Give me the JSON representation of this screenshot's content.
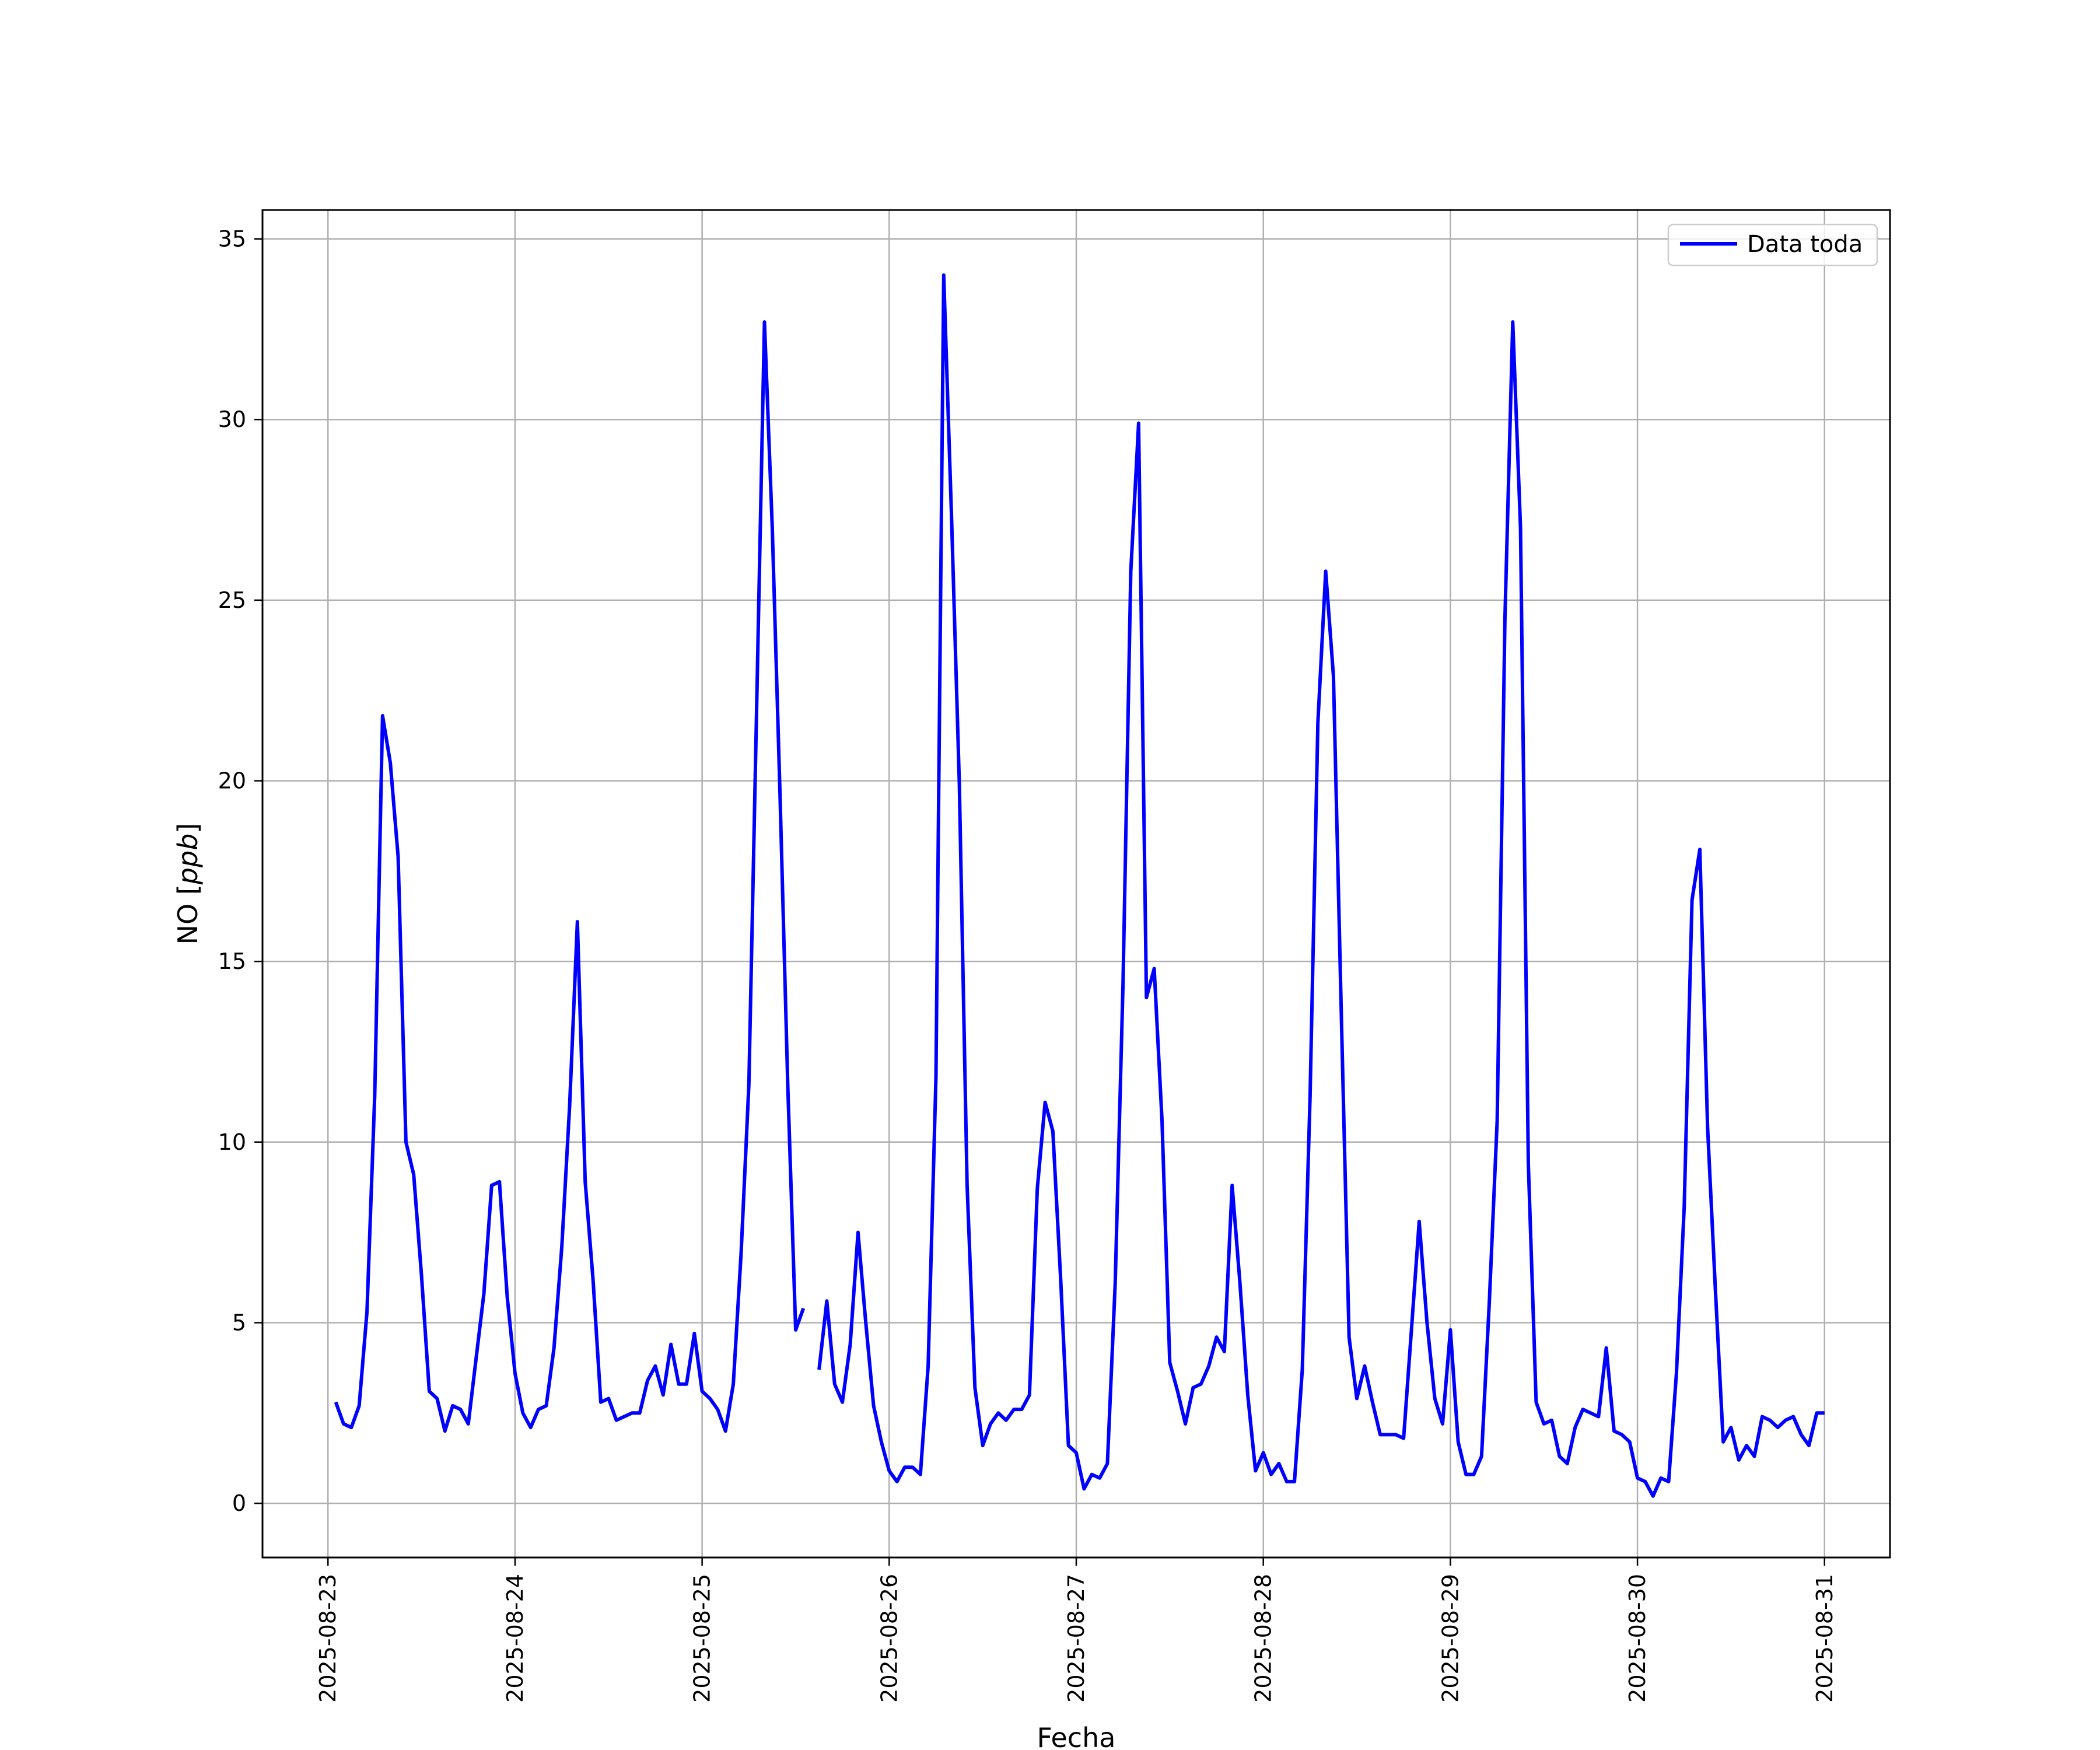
{
  "chart_data": {
    "type": "line",
    "title": "",
    "xlabel": "Fecha",
    "ylabel_main": "NO [",
    "ylabel_unit": "ppb",
    "ylabel_close": "]",
    "xlim": [
      "2025-08-22 15:36",
      "2025-08-31 08:24"
    ],
    "ylim": [
      -1.5,
      35.8
    ],
    "x_ticks": [
      "2025-08-23",
      "2025-08-24",
      "2025-08-25",
      "2025-08-26",
      "2025-08-27",
      "2025-08-28",
      "2025-08-29",
      "2025-08-30",
      "2025-08-31"
    ],
    "y_ticks": [
      0,
      5,
      10,
      15,
      20,
      25,
      30,
      35
    ],
    "y_tick_labels": [
      "0",
      "5",
      "10",
      "15",
      "20",
      "25",
      "30",
      "35"
    ],
    "grid": true,
    "legend_position": "top-right",
    "series": [
      {
        "name": "Data toda",
        "color": "#0000ff",
        "segments": [
          {
            "start": "2025-08-23 01:00",
            "step_hours": 1,
            "values": [
              2.8,
              2.2,
              2.1,
              2.7,
              5.3,
              11.3,
              21.8,
              20.5,
              17.9,
              10.0,
              9.1,
              6.3,
              3.1,
              2.9,
              2.0,
              2.7,
              2.6,
              2.2,
              4.0,
              5.8,
              8.8,
              8.9,
              5.7,
              3.6,
              2.5,
              2.1,
              2.6,
              2.7,
              4.3,
              7.1,
              11.0,
              16.1,
              8.9,
              6.2,
              2.8,
              2.9,
              2.3,
              2.4,
              2.5,
              2.5,
              3.4,
              3.8,
              3.0,
              4.4,
              3.3,
              3.3,
              4.7,
              3.1,
              2.9,
              2.6,
              2.0,
              3.3,
              6.9,
              11.6,
              22.1,
              32.7,
              27.0,
              19.6,
              11.5,
              4.8,
              5.4
            ]
          },
          {
            "start": "2025-08-25 15:00",
            "step_hours": 1,
            "values": [
              3.7,
              5.6,
              3.3,
              2.8,
              4.4,
              7.5,
              5.0,
              2.7,
              1.7,
              0.9,
              0.6,
              1.0,
              1.0,
              0.8,
              3.8,
              11.8,
              34.0,
              27.3,
              19.9,
              8.8,
              3.2,
              1.6,
              2.2,
              2.5,
              2.3,
              2.6,
              2.6,
              3.0,
              8.7,
              11.1,
              10.3,
              6.2,
              1.6,
              1.4,
              0.4,
              0.8,
              0.7,
              1.1,
              6.1,
              14.4,
              25.8,
              29.9,
              14.0,
              14.8,
              10.6,
              3.9,
              3.1,
              2.2,
              3.2,
              3.3,
              3.8,
              4.6,
              4.2,
              8.8,
              6.1,
              3.0,
              0.9,
              1.4,
              0.8,
              1.1,
              0.6,
              0.6,
              3.7,
              11.3,
              21.6,
              25.8,
              22.9,
              13.6,
              4.6,
              2.9,
              3.8,
              2.8,
              1.9,
              1.9,
              1.9,
              1.8,
              4.8,
              7.8,
              5.0,
              2.9,
              2.2,
              4.8,
              1.7,
              0.8,
              0.8,
              1.3,
              5.6,
              10.6,
              24.5,
              32.7,
              27.0,
              9.4,
              2.8,
              2.2,
              2.3,
              1.3,
              1.1,
              2.1,
              2.6,
              2.5,
              2.4,
              4.3,
              2.0,
              1.9,
              1.7,
              0.7,
              0.6,
              0.2,
              0.7,
              0.6,
              3.6,
              8.2,
              16.7,
              18.1,
              10.4,
              5.9,
              1.7,
              2.1,
              1.2,
              1.6,
              1.3,
              2.4,
              2.3,
              2.1,
              2.3,
              2.4,
              1.9,
              1.6,
              2.5,
              2.5
            ]
          }
        ]
      }
    ]
  }
}
